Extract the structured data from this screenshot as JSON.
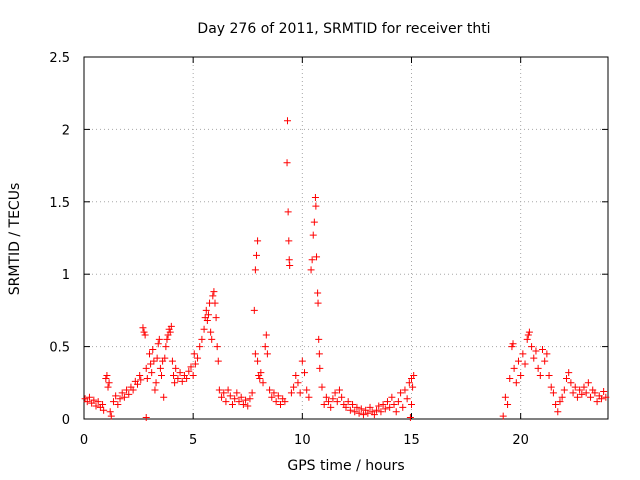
{
  "chart_data": {
    "type": "scatter",
    "title": "Day 276 of 2011, SRMTID for receiver thti",
    "xlabel": "GPS time / hours",
    "ylabel": "SRMTID / TECUs",
    "xlim": [
      0,
      24
    ],
    "ylim": [
      0,
      2.5
    ],
    "xticks": [
      0,
      5,
      10,
      15,
      20
    ],
    "xtick_labels": [
      "0",
      "5",
      "10",
      "15",
      "20"
    ],
    "yticks": [
      0,
      0.5,
      1,
      1.5,
      2,
      2.5
    ],
    "ytick_labels": [
      "0",
      "0.5",
      "1",
      "1.5",
      "2",
      "2.5"
    ],
    "grid": true,
    "marker": "+",
    "color": "#ff0000",
    "series": [
      {
        "name": "SRMTID",
        "points": [
          [
            0.05,
            0.14
          ],
          [
            0.15,
            0.12
          ],
          [
            0.25,
            0.15
          ],
          [
            0.35,
            0.11
          ],
          [
            0.45,
            0.13
          ],
          [
            0.55,
            0.09
          ],
          [
            0.65,
            0.12
          ],
          [
            0.75,
            0.08
          ],
          [
            0.85,
            0.1
          ],
          [
            0.9,
            0.06
          ],
          [
            1.0,
            0.28
          ],
          [
            1.05,
            0.3
          ],
          [
            1.1,
            0.22
          ],
          [
            1.15,
            0.25
          ],
          [
            1.2,
            0.05
          ],
          [
            1.25,
            0.02
          ],
          [
            1.35,
            0.12
          ],
          [
            1.45,
            0.16
          ],
          [
            1.55,
            0.1
          ],
          [
            1.65,
            0.14
          ],
          [
            1.75,
            0.18
          ],
          [
            1.85,
            0.15
          ],
          [
            1.95,
            0.2
          ],
          [
            2.05,
            0.17
          ],
          [
            2.15,
            0.22
          ],
          [
            2.25,
            0.2
          ],
          [
            2.35,
            0.26
          ],
          [
            2.45,
            0.24
          ],
          [
            2.55,
            0.3
          ],
          [
            2.6,
            0.27
          ],
          [
            2.7,
            0.63
          ],
          [
            2.75,
            0.6
          ],
          [
            2.8,
            0.58
          ],
          [
            2.85,
            0.35
          ],
          [
            2.9,
            0.28
          ],
          [
            2.85,
            0.01
          ],
          [
            3.0,
            0.45
          ],
          [
            3.05,
            0.38
          ],
          [
            3.1,
            0.32
          ],
          [
            3.15,
            0.48
          ],
          [
            3.2,
            0.4
          ],
          [
            3.25,
            0.2
          ],
          [
            3.3,
            0.25
          ],
          [
            3.35,
            0.42
          ],
          [
            3.4,
            0.52
          ],
          [
            3.45,
            0.55
          ],
          [
            3.5,
            0.35
          ],
          [
            3.55,
            0.3
          ],
          [
            3.6,
            0.4
          ],
          [
            3.65,
            0.15
          ],
          [
            3.7,
            0.42
          ],
          [
            3.75,
            0.5
          ],
          [
            3.8,
            0.55
          ],
          [
            3.85,
            0.58
          ],
          [
            3.9,
            0.62
          ],
          [
            3.95,
            0.6
          ],
          [
            4.0,
            0.64
          ],
          [
            4.05,
            0.4
          ],
          [
            4.1,
            0.3
          ],
          [
            4.15,
            0.25
          ],
          [
            4.2,
            0.35
          ],
          [
            4.3,
            0.28
          ],
          [
            4.4,
            0.32
          ],
          [
            4.5,
            0.26
          ],
          [
            4.6,
            0.3
          ],
          [
            4.7,
            0.28
          ],
          [
            4.8,
            0.33
          ],
          [
            4.9,
            0.36
          ],
          [
            5.0,
            0.3
          ],
          [
            5.05,
            0.45
          ],
          [
            5.1,
            0.38
          ],
          [
            5.2,
            0.42
          ],
          [
            5.3,
            0.5
          ],
          [
            5.4,
            0.55
          ],
          [
            5.5,
            0.62
          ],
          [
            5.55,
            0.7
          ],
          [
            5.6,
            0.75
          ],
          [
            5.65,
            0.68
          ],
          [
            5.7,
            0.72
          ],
          [
            5.75,
            0.8
          ],
          [
            5.8,
            0.6
          ],
          [
            5.85,
            0.55
          ],
          [
            5.9,
            0.85
          ],
          [
            5.95,
            0.88
          ],
          [
            6.0,
            0.8
          ],
          [
            6.05,
            0.7
          ],
          [
            6.1,
            0.5
          ],
          [
            6.15,
            0.4
          ],
          [
            6.2,
            0.2
          ],
          [
            6.3,
            0.15
          ],
          [
            6.4,
            0.18
          ],
          [
            6.5,
            0.12
          ],
          [
            6.6,
            0.2
          ],
          [
            6.7,
            0.16
          ],
          [
            6.8,
            0.1
          ],
          [
            6.9,
            0.14
          ],
          [
            7.0,
            0.18
          ],
          [
            7.1,
            0.12
          ],
          [
            7.2,
            0.15
          ],
          [
            7.3,
            0.1
          ],
          [
            7.4,
            0.13
          ],
          [
            7.5,
            0.09
          ],
          [
            7.6,
            0.14
          ],
          [
            7.7,
            0.18
          ],
          [
            7.8,
            0.75
          ],
          [
            7.85,
            1.03
          ],
          [
            7.9,
            1.13
          ],
          [
            7.95,
            1.23
          ],
          [
            7.85,
            0.45
          ],
          [
            7.95,
            0.4
          ],
          [
            8.0,
            0.3
          ],
          [
            8.05,
            0.28
          ],
          [
            8.1,
            0.32
          ],
          [
            8.2,
            0.25
          ],
          [
            8.3,
            0.5
          ],
          [
            8.35,
            0.58
          ],
          [
            8.4,
            0.45
          ],
          [
            8.5,
            0.2
          ],
          [
            8.6,
            0.15
          ],
          [
            8.7,
            0.18
          ],
          [
            8.8,
            0.12
          ],
          [
            8.9,
            0.16
          ],
          [
            9.0,
            0.1
          ],
          [
            9.1,
            0.14
          ],
          [
            9.2,
            0.12
          ],
          [
            9.3,
            1.77
          ],
          [
            9.32,
            2.06
          ],
          [
            9.35,
            1.43
          ],
          [
            9.38,
            1.23
          ],
          [
            9.4,
            1.1
          ],
          [
            9.42,
            1.06
          ],
          [
            9.5,
            0.18
          ],
          [
            9.6,
            0.22
          ],
          [
            9.7,
            0.3
          ],
          [
            9.8,
            0.25
          ],
          [
            9.9,
            0.18
          ],
          [
            10.0,
            0.4
          ],
          [
            10.1,
            0.32
          ],
          [
            10.2,
            0.2
          ],
          [
            10.3,
            0.15
          ],
          [
            10.4,
            1.03
          ],
          [
            10.45,
            1.1
          ],
          [
            10.5,
            1.27
          ],
          [
            10.55,
            1.36
          ],
          [
            10.6,
            1.53
          ],
          [
            10.62,
            1.47
          ],
          [
            10.65,
            1.12
          ],
          [
            10.7,
            0.87
          ],
          [
            10.72,
            0.8
          ],
          [
            10.75,
            0.55
          ],
          [
            10.78,
            0.45
          ],
          [
            10.8,
            0.35
          ],
          [
            10.9,
            0.22
          ],
          [
            11.0,
            0.1
          ],
          [
            11.1,
            0.15
          ],
          [
            11.2,
            0.12
          ],
          [
            11.3,
            0.08
          ],
          [
            11.4,
            0.14
          ],
          [
            11.5,
            0.18
          ],
          [
            11.6,
            0.12
          ],
          [
            11.7,
            0.2
          ],
          [
            11.8,
            0.15
          ],
          [
            11.9,
            0.1
          ],
          [
            12.0,
            0.08
          ],
          [
            12.1,
            0.12
          ],
          [
            12.2,
            0.06
          ],
          [
            12.3,
            0.1
          ],
          [
            12.4,
            0.05
          ],
          [
            12.5,
            0.08
          ],
          [
            12.6,
            0.04
          ],
          [
            12.7,
            0.07
          ],
          [
            12.8,
            0.03
          ],
          [
            12.9,
            0.06
          ],
          [
            13.0,
            0.04
          ],
          [
            13.1,
            0.08
          ],
          [
            13.2,
            0.05
          ],
          [
            13.3,
            0.03
          ],
          [
            13.4,
            0.06
          ],
          [
            13.5,
            0.09
          ],
          [
            13.6,
            0.05
          ],
          [
            13.7,
            0.1
          ],
          [
            13.8,
            0.07
          ],
          [
            13.9,
            0.12
          ],
          [
            14.0,
            0.08
          ],
          [
            14.1,
            0.15
          ],
          [
            14.2,
            0.1
          ],
          [
            14.3,
            0.05
          ],
          [
            14.4,
            0.12
          ],
          [
            14.5,
            0.18
          ],
          [
            14.6,
            0.08
          ],
          [
            14.7,
            0.2
          ],
          [
            14.8,
            0.14
          ],
          [
            14.9,
            0.25
          ],
          [
            14.95,
            0.01
          ],
          [
            15.0,
            0.28
          ],
          [
            15.05,
            0.22
          ],
          [
            15.1,
            0.3
          ],
          [
            15.0,
            0.1
          ],
          [
            19.2,
            0.02
          ],
          [
            19.3,
            0.15
          ],
          [
            19.4,
            0.1
          ],
          [
            19.5,
            0.28
          ],
          [
            19.6,
            0.5
          ],
          [
            19.65,
            0.52
          ],
          [
            19.7,
            0.35
          ],
          [
            19.8,
            0.25
          ],
          [
            19.9,
            0.4
          ],
          [
            20.0,
            0.3
          ],
          [
            20.1,
            0.45
          ],
          [
            20.2,
            0.38
          ],
          [
            20.3,
            0.55
          ],
          [
            20.35,
            0.58
          ],
          [
            20.4,
            0.6
          ],
          [
            20.5,
            0.5
          ],
          [
            20.6,
            0.42
          ],
          [
            20.7,
            0.47
          ],
          [
            20.8,
            0.35
          ],
          [
            20.9,
            0.3
          ],
          [
            21.0,
            0.48
          ],
          [
            21.1,
            0.4
          ],
          [
            21.2,
            0.45
          ],
          [
            21.3,
            0.3
          ],
          [
            21.4,
            0.22
          ],
          [
            21.5,
            0.18
          ],
          [
            21.6,
            0.1
          ],
          [
            21.7,
            0.05
          ],
          [
            21.8,
            0.12
          ],
          [
            21.9,
            0.15
          ],
          [
            22.0,
            0.2
          ],
          [
            22.1,
            0.28
          ],
          [
            22.2,
            0.32
          ],
          [
            22.3,
            0.25
          ],
          [
            22.4,
            0.18
          ],
          [
            22.5,
            0.22
          ],
          [
            22.6,
            0.15
          ],
          [
            22.7,
            0.2
          ],
          [
            22.8,
            0.17
          ],
          [
            22.9,
            0.22
          ],
          [
            23.0,
            0.18
          ],
          [
            23.1,
            0.25
          ],
          [
            23.2,
            0.15
          ],
          [
            23.3,
            0.2
          ],
          [
            23.4,
            0.18
          ],
          [
            23.5,
            0.12
          ],
          [
            23.6,
            0.16
          ],
          [
            23.7,
            0.14
          ],
          [
            23.8,
            0.19
          ],
          [
            23.9,
            0.15
          ]
        ]
      }
    ]
  }
}
